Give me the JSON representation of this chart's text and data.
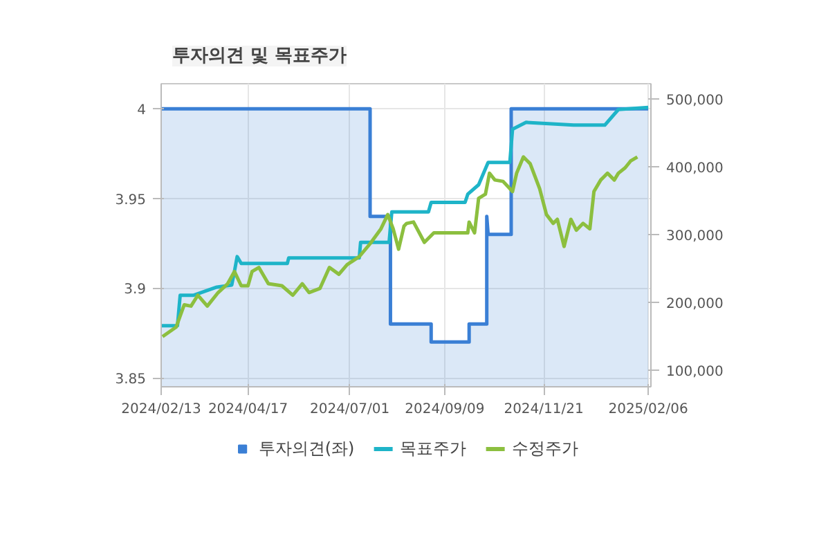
{
  "chart_data": {
    "type": "line",
    "title": "투자의견 및 목표주가",
    "grid": true,
    "legend": "bottom",
    "xlim": [
      "2024-02-13",
      "2025-02-08"
    ],
    "xticks": [
      {
        "value": "2024-02-13",
        "label": "2024/02/13"
      },
      {
        "value": "2024-04-17",
        "label": "2024/04/17"
      },
      {
        "value": "2024-07-01",
        "label": "2024/07/01"
      },
      {
        "value": "2024-09-09",
        "label": "2024/09/09"
      },
      {
        "value": "2024-11-21",
        "label": "2024/11/21"
      },
      {
        "value": "2025-02-06",
        "label": "2025/02/06"
      }
    ],
    "ylim": [
      3.845,
      4.014
    ],
    "yticks": [
      3.85,
      3.9,
      3.95,
      4
    ],
    "y2lim": [
      75000,
      522000
    ],
    "y2ticks": [
      {
        "value": 100000,
        "label": "100,000"
      },
      {
        "value": 200000,
        "label": "200,000"
      },
      {
        "value": 300000,
        "label": "300,000"
      },
      {
        "value": 400000,
        "label": "400,000"
      },
      {
        "value": 500000,
        "label": "500,000"
      }
    ],
    "series": [
      {
        "name": "투자의견(좌)",
        "type": "area",
        "color": "#3a7fd5",
        "x": [
          "2024-02-13",
          "2024-07-16",
          "2024-07-16",
          "2024-07-31",
          "2024-07-31",
          "2024-08-30",
          "2024-08-30",
          "2024-09-27",
          "2024-09-27",
          "2024-10-10",
          "2024-10-10",
          "2024-10-11",
          "2024-10-28",
          "2024-10-28",
          "2025-02-06"
        ],
        "values": [
          4,
          4,
          3.94,
          3.94,
          3.88,
          3.88,
          3.87,
          3.87,
          3.88,
          3.88,
          3.94,
          3.93,
          3.93,
          4,
          4
        ]
      },
      {
        "name": "목표주가",
        "axis": "y2",
        "color": "#1eb4c8",
        "x": [
          "2024-02-13",
          "2024-02-25",
          "2024-02-27",
          "2024-03-08",
          "2024-03-25",
          "2024-04-05",
          "2024-04-07",
          "2024-04-09",
          "2024-04-12",
          "2024-05-16",
          "2024-05-17",
          "2024-07-08",
          "2024-07-09",
          "2024-07-30",
          "2024-08-01",
          "2024-08-28",
          "2024-08-30",
          "2024-09-24",
          "2024-09-26",
          "2024-10-04",
          "2024-10-11",
          "2024-10-27",
          "2024-10-29",
          "2024-11-08",
          "2024-12-13",
          "2025-01-05",
          "2025-01-15",
          "2025-02-06"
        ],
        "values": [
          165000,
          165000,
          210000,
          210000,
          222000,
          225000,
          245000,
          267000,
          257000,
          257000,
          265000,
          265000,
          288000,
          288000,
          333000,
          333000,
          347000,
          347000,
          359000,
          373000,
          406000,
          406000,
          455000,
          465000,
          461000,
          461000,
          484000,
          487000
        ]
      },
      {
        "name": "수정주가",
        "axis": "y2",
        "color": "#8cbf3f",
        "x": [
          "2024-02-14",
          "2024-02-24",
          "2024-03-01",
          "2024-03-06",
          "2024-03-11",
          "2024-03-18",
          "2024-03-26",
          "2024-04-02",
          "2024-04-07",
          "2024-04-12",
          "2024-04-17",
          "2024-04-20",
          "2024-04-25",
          "2024-05-02",
          "2024-05-12",
          "2024-05-20",
          "2024-05-27",
          "2024-06-01",
          "2024-06-09",
          "2024-06-16",
          "2024-06-23",
          "2024-06-29",
          "2024-07-08",
          "2024-07-16",
          "2024-07-24",
          "2024-07-29",
          "2024-08-02",
          "2024-08-06",
          "2024-08-10",
          "2024-08-12",
          "2024-08-17",
          "2024-08-25",
          "2024-09-01",
          "2024-09-26",
          "2024-09-27",
          "2024-10-01",
          "2024-10-04",
          "2024-10-09",
          "2024-10-12",
          "2024-10-16",
          "2024-10-22",
          "2024-10-29",
          "2024-11-01",
          "2024-11-06",
          "2024-11-11",
          "2024-11-18",
          "2024-11-23",
          "2024-11-28",
          "2024-12-01",
          "2024-12-06",
          "2024-12-11",
          "2024-12-15",
          "2024-12-20",
          "2024-12-25",
          "2024-12-28",
          "2025-01-02",
          "2025-01-07",
          "2025-01-12",
          "2025-01-15",
          "2025-01-20",
          "2025-01-24",
          "2025-01-29"
        ],
        "values": [
          149000,
          163000,
          196000,
          194000,
          210000,
          194000,
          214000,
          227000,
          245000,
          224000,
          224000,
          245000,
          251000,
          227000,
          224000,
          210000,
          227000,
          214000,
          220000,
          251000,
          241000,
          255000,
          267000,
          286000,
          308000,
          329000,
          308000,
          278000,
          312000,
          316000,
          318000,
          288000,
          302000,
          302000,
          318000,
          302000,
          353000,
          359000,
          390000,
          380000,
          378000,
          363000,
          390000,
          414000,
          404000,
          367000,
          329000,
          316000,
          322000,
          282000,
          322000,
          306000,
          316000,
          308000,
          363000,
          380000,
          390000,
          380000,
          390000,
          398000,
          408000,
          414000
        ]
      }
    ]
  }
}
